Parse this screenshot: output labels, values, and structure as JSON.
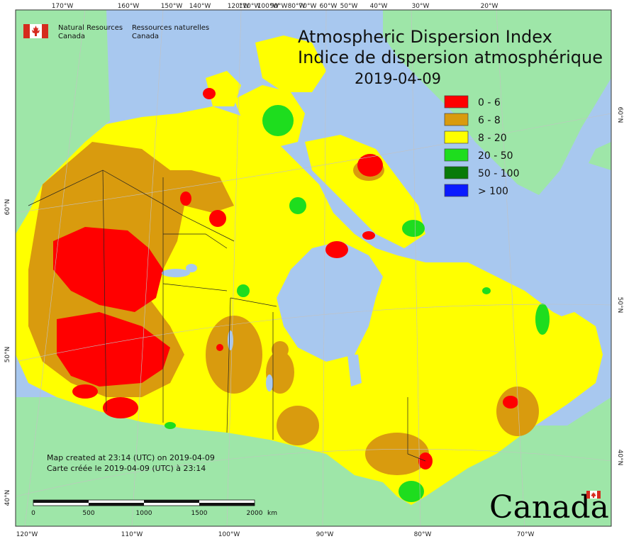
{
  "header": {
    "agency_en": "Natural Resources",
    "agency_en_2": "Canada",
    "agency_fr": "Ressources naturelles",
    "agency_fr_2": "Canada"
  },
  "title": {
    "line1": "Atmospheric Dispersion Index",
    "line2": "Indice de dispersion atmosphérique",
    "date": "2019-04-09"
  },
  "legend": {
    "items": [
      {
        "label": "0 - 6",
        "color": "#ff0000"
      },
      {
        "label": "6 - 8",
        "color": "#d99b0e"
      },
      {
        "label": "8 - 20",
        "color": "#ffff00"
      },
      {
        "label": "20 - 50",
        "color": "#1edd1e"
      },
      {
        "label": "50 - 100",
        "color": "#087a08"
      },
      {
        "label": "> 100",
        "color": "#0a1aff"
      }
    ]
  },
  "axes": {
    "top": [
      "170°W",
      "160°W",
      "150°W",
      "140°W",
      "120°W",
      "110°W",
      "100°W",
      "90°W",
      "80°W",
      "70°W",
      "60°W",
      "50°W",
      "40°W",
      "30°W",
      "20°W"
    ],
    "bottom": [
      "120°W",
      "110°W",
      "100°W",
      "90°W",
      "80°W",
      "70°W"
    ],
    "left": [
      "60°N",
      "50°N",
      "40°N"
    ],
    "right": [
      "60°N",
      "50°N",
      "40°N"
    ]
  },
  "footer": {
    "note_en": "Map created at 23:14 (UTC) on 2019-04-09",
    "note_fr": "Carte créée le 2019-04-09 (UTC) à 23:14",
    "scale": {
      "labels": [
        "0",
        "500",
        "1000",
        "1500",
        "2000"
      ],
      "unit": "km"
    },
    "wordmark": "Canada"
  },
  "colors": {
    "ocean": "#a8c8ef",
    "land_other": "#9ee6a8",
    "land_canada": "#ffff00",
    "grid": "#c2c2c2",
    "border": "#222222"
  }
}
